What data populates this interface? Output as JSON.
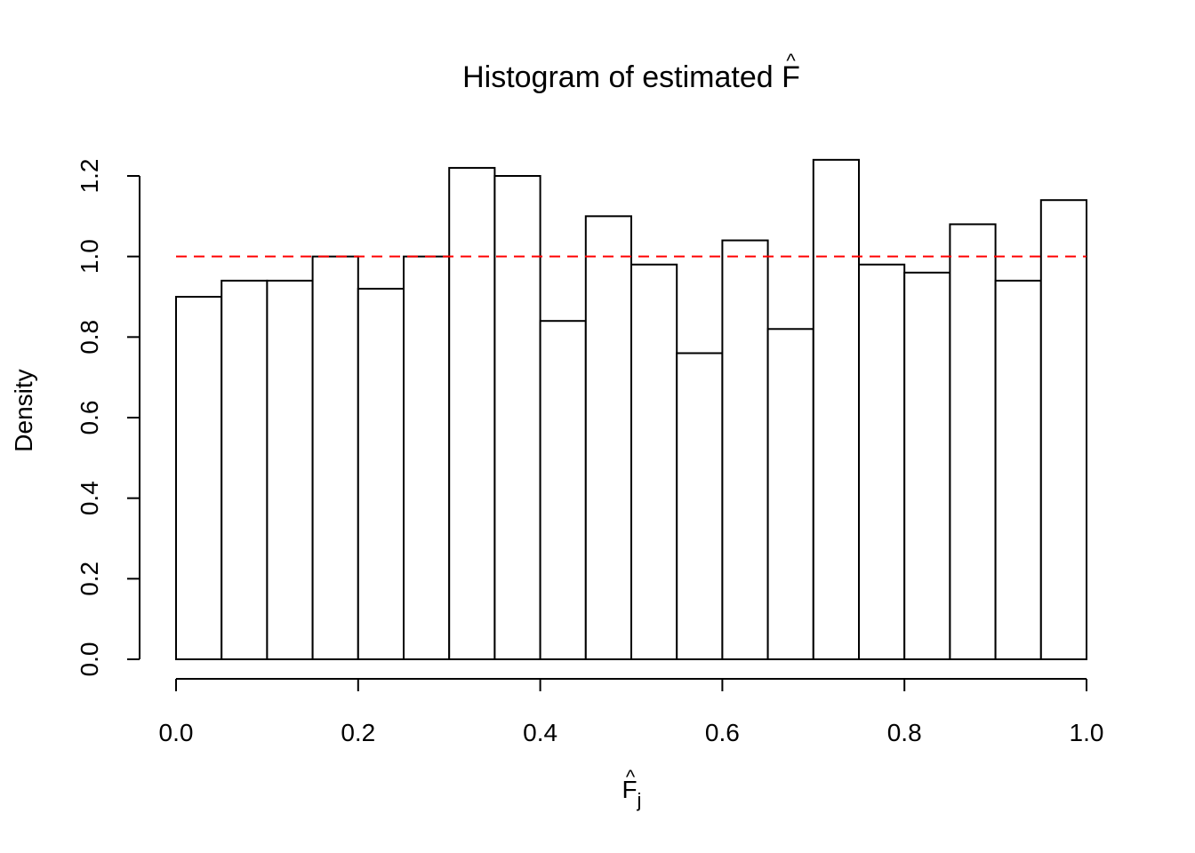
{
  "chart_data": {
    "type": "bar",
    "subtype": "histogram",
    "title_text": "Histogram of estimated ",
    "title_symbol": "F",
    "title_symbol_accent": "^",
    "xlabel_symbol": "F",
    "xlabel_accent": "^",
    "xlabel_subscript": "j",
    "ylabel": "Density",
    "bin_edges": [
      0.0,
      0.05,
      0.1,
      0.15,
      0.2,
      0.25,
      0.3,
      0.35,
      0.4,
      0.45,
      0.5,
      0.55,
      0.6,
      0.65,
      0.7,
      0.75,
      0.8,
      0.85,
      0.9,
      0.95,
      1.0
    ],
    "values": [
      0.9,
      0.94,
      0.94,
      1.0,
      0.92,
      1.0,
      1.22,
      1.2,
      0.84,
      1.1,
      0.98,
      0.76,
      1.04,
      0.82,
      1.24,
      0.98,
      0.96,
      1.08,
      0.94,
      1.14
    ],
    "xlim": [
      0.0,
      1.0
    ],
    "ylim": [
      0.0,
      1.2
    ],
    "x_ticks": [
      0.0,
      0.2,
      0.4,
      0.6,
      0.8,
      1.0
    ],
    "x_tick_labels": [
      "0.0",
      "0.2",
      "0.4",
      "0.6",
      "0.8",
      "1.0"
    ],
    "y_ticks": [
      0.0,
      0.2,
      0.4,
      0.6,
      0.8,
      1.0,
      1.2
    ],
    "y_tick_labels": [
      "0.0",
      "0.2",
      "0.4",
      "0.6",
      "0.8",
      "1.0",
      "1.2"
    ],
    "reference_line": {
      "y": 1.0,
      "color": "#ff0000",
      "style": "dashed"
    },
    "bar_fill": "#ffffff",
    "bar_stroke": "#000000",
    "grid": false,
    "legend": "none"
  }
}
